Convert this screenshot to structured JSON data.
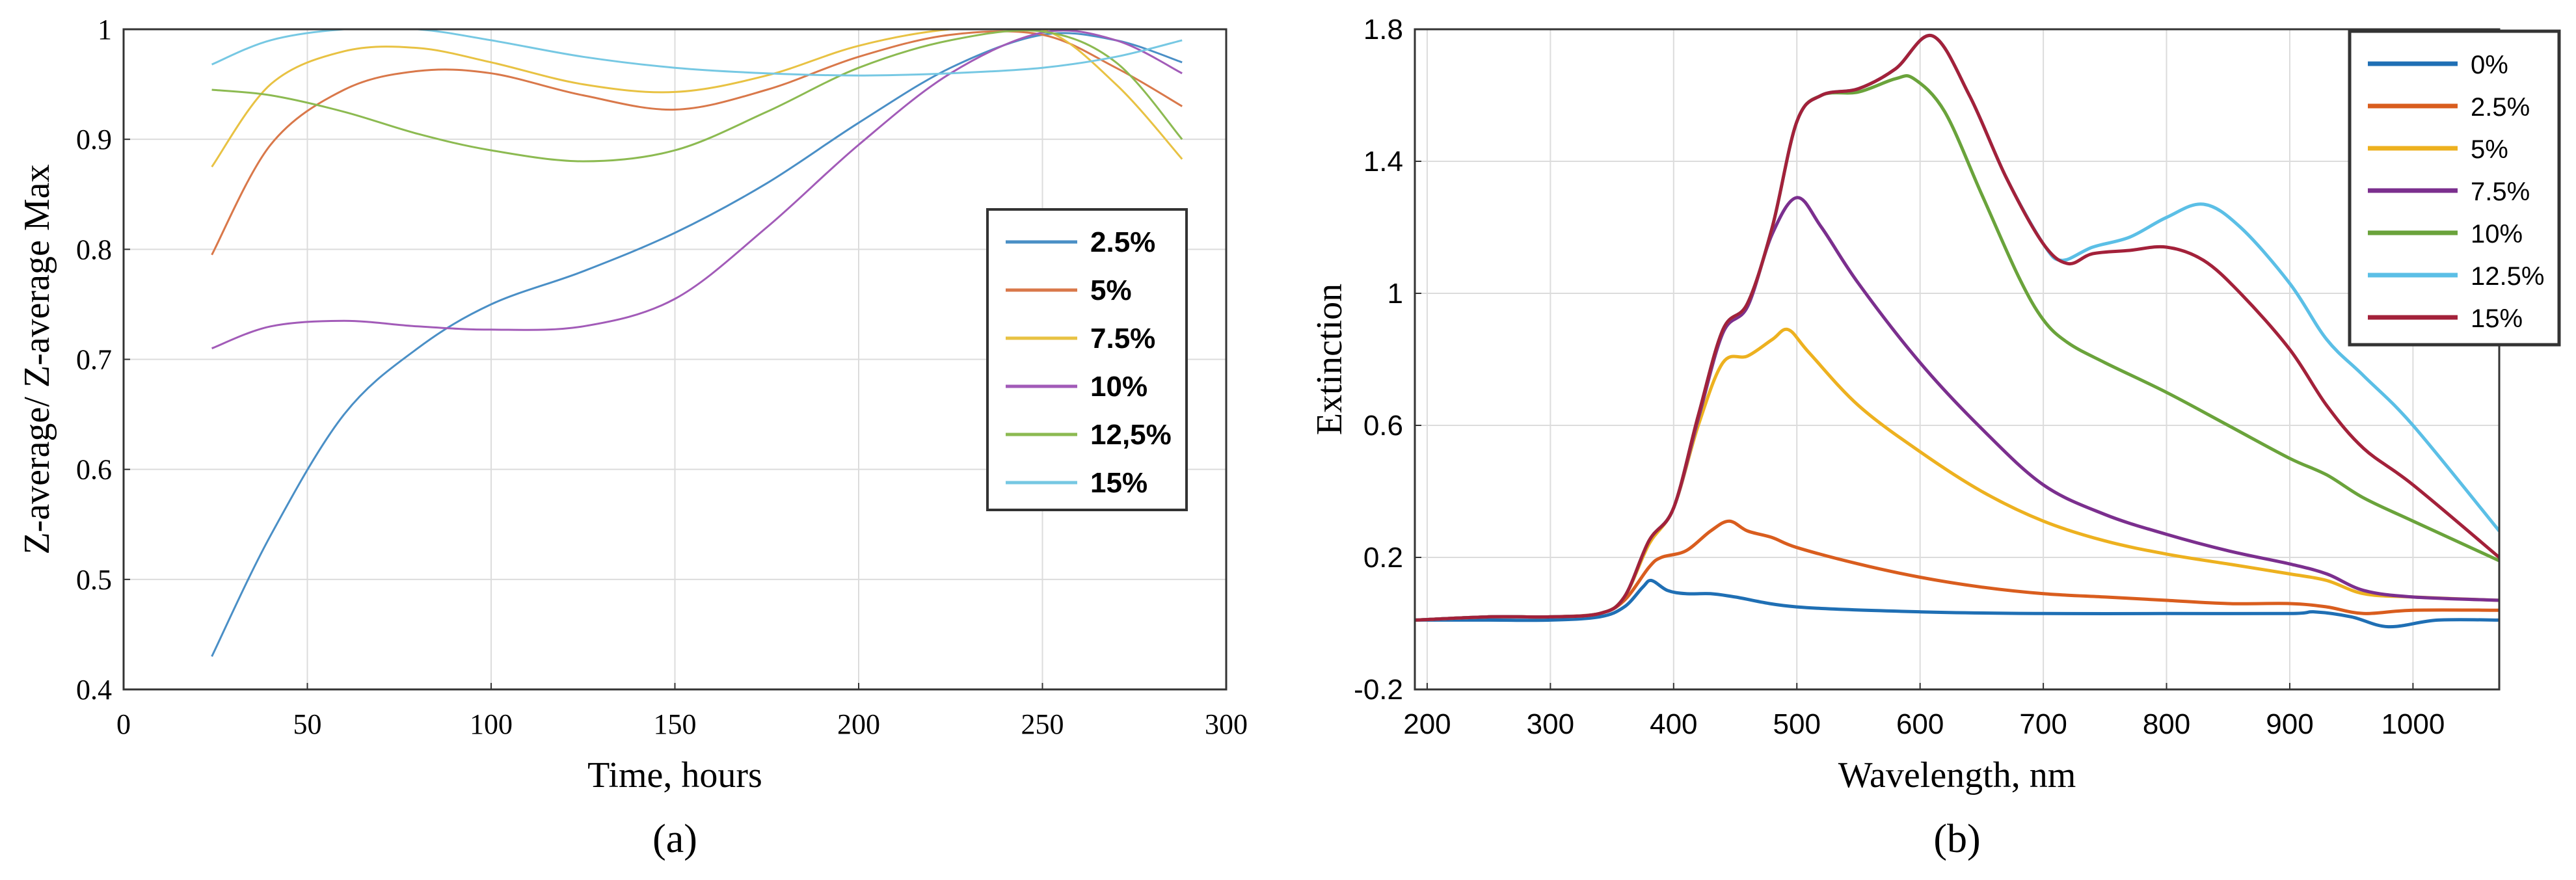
{
  "chart_data": [
    {
      "panel": "a",
      "type": "line",
      "panel_label": "(a)",
      "title": "",
      "xlabel": "Time, hours",
      "ylabel": "Z-average/ Z-average Max",
      "xlim": [
        0,
        300
      ],
      "ylim": [
        0.4,
        1.0
      ],
      "xticks": [
        "0",
        "50",
        "100",
        "150",
        "200",
        "250",
        "300"
      ],
      "yticks": [
        "0.4",
        "0.5",
        "0.6",
        "0.7",
        "0.8",
        "0.9",
        "1"
      ],
      "grid": true,
      "legend_position": "right",
      "series": [
        {
          "name": "2.5%",
          "color": "#4a8fc6",
          "x": [
            24,
            40,
            60,
            80,
            100,
            125,
            150,
            175,
            200,
            225,
            250,
            270,
            288
          ],
          "y": [
            0.43,
            0.54,
            0.65,
            0.71,
            0.75,
            0.78,
            0.815,
            0.86,
            0.915,
            0.965,
            0.995,
            0.99,
            0.97
          ]
        },
        {
          "name": "5%",
          "color": "#d9784a",
          "x": [
            24,
            40,
            60,
            80,
            100,
            125,
            150,
            175,
            200,
            225,
            250,
            270,
            288
          ],
          "y": [
            0.795,
            0.895,
            0.945,
            0.962,
            0.96,
            0.94,
            0.927,
            0.945,
            0.975,
            0.995,
            0.995,
            0.965,
            0.93
          ]
        },
        {
          "name": "7.5%",
          "color": "#e8c243",
          "x": [
            24,
            40,
            60,
            80,
            100,
            125,
            150,
            175,
            200,
            225,
            250,
            270,
            288
          ],
          "y": [
            0.875,
            0.95,
            0.98,
            0.983,
            0.97,
            0.95,
            0.943,
            0.958,
            0.985,
            1.0,
            1.0,
            0.95,
            0.882
          ]
        },
        {
          "name": "10%",
          "color": "#a25bb8",
          "x": [
            24,
            40,
            60,
            80,
            100,
            125,
            150,
            175,
            200,
            225,
            250,
            270,
            288
          ],
          "y": [
            0.71,
            0.73,
            0.735,
            0.73,
            0.727,
            0.73,
            0.755,
            0.82,
            0.895,
            0.96,
            0.997,
            0.99,
            0.96
          ]
        },
        {
          "name": "12,5%",
          "color": "#8cba51",
          "x": [
            24,
            40,
            60,
            80,
            100,
            125,
            150,
            175,
            200,
            225,
            250,
            270,
            288
          ],
          "y": [
            0.945,
            0.94,
            0.925,
            0.905,
            0.89,
            0.88,
            0.89,
            0.925,
            0.965,
            0.99,
            0.998,
            0.97,
            0.9
          ]
        },
        {
          "name": "15%",
          "color": "#76c8e3",
          "x": [
            24,
            40,
            60,
            80,
            100,
            125,
            150,
            175,
            200,
            225,
            250,
            270,
            288
          ],
          "y": [
            0.968,
            0.99,
            1.0,
            1.0,
            0.99,
            0.975,
            0.965,
            0.96,
            0.958,
            0.96,
            0.965,
            0.975,
            0.99
          ]
        }
      ]
    },
    {
      "panel": "b",
      "type": "line",
      "panel_label": "(b)",
      "title": "",
      "xlabel": "Wavelength, nm",
      "ylabel": "Extinction",
      "xlim": [
        190,
        1070
      ],
      "ylim": [
        -0.2,
        1.8
      ],
      "xticks": [
        "200",
        "300",
        "400",
        "500",
        "600",
        "700",
        "800",
        "900",
        "1000"
      ],
      "yticks": [
        "-0.2",
        "0.2",
        "0.6",
        "1",
        "1.4",
        "1.8"
      ],
      "grid": true,
      "legend_position": "top-right",
      "series": [
        {
          "name": "0%",
          "color": "#1f6fb4",
          "x": [
            190,
            250,
            300,
            340,
            360,
            375,
            382,
            395,
            410,
            430,
            450,
            500,
            600,
            700,
            800,
            900,
            920,
            950,
            980,
            1020,
            1070
          ],
          "y": [
            0.01,
            0.01,
            0.01,
            0.02,
            0.05,
            0.11,
            0.13,
            0.1,
            0.09,
            0.09,
            0.08,
            0.05,
            0.035,
            0.03,
            0.03,
            0.03,
            0.035,
            0.02,
            -0.01,
            0.01,
            0.01
          ]
        },
        {
          "name": "2.5%",
          "color": "#d95d1e",
          "x": [
            190,
            250,
            300,
            340,
            360,
            380,
            390,
            410,
            430,
            445,
            460,
            480,
            500,
            550,
            600,
            650,
            700,
            750,
            800,
            850,
            900,
            930,
            960,
            1000,
            1070
          ],
          "y": [
            0.01,
            0.02,
            0.02,
            0.03,
            0.07,
            0.17,
            0.2,
            0.22,
            0.28,
            0.31,
            0.28,
            0.26,
            0.23,
            0.18,
            0.14,
            0.11,
            0.09,
            0.08,
            0.07,
            0.06,
            0.06,
            0.05,
            0.03,
            0.04,
            0.04
          ]
        },
        {
          "name": "5%",
          "color": "#edb11f",
          "x": [
            190,
            250,
            300,
            340,
            360,
            380,
            400,
            420,
            440,
            460,
            480,
            493,
            510,
            550,
            600,
            650,
            700,
            750,
            800,
            850,
            900,
            930,
            960,
            1000,
            1070
          ],
          "y": [
            0.01,
            0.02,
            0.02,
            0.03,
            0.08,
            0.24,
            0.35,
            0.6,
            0.79,
            0.81,
            0.86,
            0.89,
            0.82,
            0.66,
            0.52,
            0.4,
            0.31,
            0.25,
            0.21,
            0.18,
            0.15,
            0.13,
            0.09,
            0.08,
            0.07
          ]
        },
        {
          "name": "7.5%",
          "color": "#7b2f8e",
          "x": [
            190,
            250,
            300,
            340,
            360,
            380,
            400,
            420,
            440,
            460,
            480,
            500,
            520,
            550,
            600,
            650,
            700,
            750,
            800,
            850,
            900,
            930,
            960,
            1000,
            1070
          ],
          "y": [
            0.01,
            0.02,
            0.02,
            0.03,
            0.08,
            0.25,
            0.35,
            0.62,
            0.88,
            0.96,
            1.18,
            1.29,
            1.2,
            1.03,
            0.79,
            0.59,
            0.42,
            0.33,
            0.27,
            0.22,
            0.18,
            0.15,
            0.1,
            0.08,
            0.07
          ]
        },
        {
          "name": "10%",
          "color": "#6aa33b",
          "x": [
            190,
            250,
            300,
            340,
            360,
            380,
            400,
            420,
            440,
            460,
            480,
            500,
            520,
            550,
            580,
            595,
            620,
            650,
            680,
            700,
            720,
            750,
            800,
            850,
            900,
            930,
            960,
            1000,
            1070
          ],
          "y": [
            0.01,
            0.02,
            0.02,
            0.03,
            0.08,
            0.25,
            0.35,
            0.63,
            0.89,
            0.97,
            1.2,
            1.52,
            1.6,
            1.61,
            1.65,
            1.65,
            1.55,
            1.3,
            1.05,
            0.92,
            0.85,
            0.79,
            0.7,
            0.6,
            0.5,
            0.45,
            0.38,
            0.31,
            0.19
          ]
        },
        {
          "name": "12.5%",
          "color": "#5bbfe6",
          "x": [
            190,
            250,
            300,
            340,
            360,
            380,
            400,
            420,
            440,
            460,
            480,
            500,
            520,
            550,
            580,
            610,
            640,
            670,
            700,
            715,
            740,
            770,
            800,
            830,
            860,
            900,
            930,
            960,
            1000,
            1070
          ],
          "y": [
            0.01,
            0.02,
            0.02,
            0.03,
            0.08,
            0.25,
            0.35,
            0.63,
            0.89,
            0.97,
            1.2,
            1.52,
            1.6,
            1.62,
            1.68,
            1.78,
            1.6,
            1.35,
            1.15,
            1.1,
            1.14,
            1.17,
            1.23,
            1.27,
            1.2,
            1.03,
            0.86,
            0.75,
            0.6,
            0.28
          ]
        },
        {
          "name": "15%",
          "color": "#a3213a",
          "x": [
            190,
            250,
            300,
            340,
            360,
            380,
            400,
            420,
            440,
            460,
            480,
            500,
            520,
            550,
            580,
            610,
            640,
            670,
            700,
            720,
            740,
            770,
            800,
            830,
            860,
            900,
            930,
            960,
            1000,
            1070
          ],
          "y": [
            0.01,
            0.02,
            0.02,
            0.03,
            0.08,
            0.25,
            0.35,
            0.63,
            0.89,
            0.97,
            1.2,
            1.52,
            1.6,
            1.62,
            1.68,
            1.78,
            1.6,
            1.35,
            1.15,
            1.09,
            1.12,
            1.13,
            1.14,
            1.1,
            1.0,
            0.83,
            0.66,
            0.53,
            0.42,
            0.2
          ]
        }
      ]
    }
  ]
}
